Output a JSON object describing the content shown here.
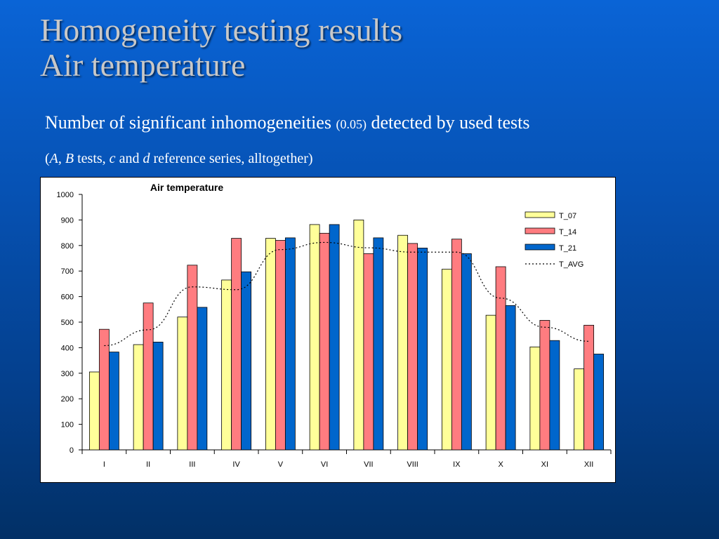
{
  "slide": {
    "title_line1": "Homogeneity testing results",
    "title_line2": "Air temperature",
    "subtitle_main": "Number of significant inhomogeneities ",
    "subtitle_sig": "(0.05)",
    "subtitle_end": " detected by used tests",
    "note": {
      "open": "(",
      "a": "A",
      "comma": ", ",
      "b": "B",
      "tests": " tests, ",
      "c": "c",
      "and": " and ",
      "d": "d",
      "rest": " reference series, alltogether)"
    }
  },
  "chart_data": {
    "type": "bar",
    "title": "Air temperature",
    "categories": [
      "I",
      "II",
      "III",
      "IV",
      "V",
      "VI",
      "VII",
      "VIII",
      "IX",
      "X",
      "XI",
      "XII"
    ],
    "ylim": [
      0,
      1000
    ],
    "yticks": [
      0,
      100,
      200,
      300,
      400,
      500,
      600,
      700,
      800,
      900,
      1000
    ],
    "grid": false,
    "legend_position": "top-right",
    "series": [
      {
        "name": "T_07",
        "type": "bar",
        "color": "#ffff99",
        "values": [
          305,
          412,
          520,
          665,
          828,
          882,
          900,
          840,
          707,
          527,
          403,
          317
        ]
      },
      {
        "name": "T_14",
        "type": "bar",
        "color": "#ff7c80",
        "values": [
          472,
          575,
          723,
          828,
          820,
          848,
          768,
          808,
          825,
          717,
          507,
          488
        ]
      },
      {
        "name": "T_21",
        "type": "bar",
        "color": "#0066cc",
        "values": [
          383,
          422,
          558,
          697,
          830,
          882,
          830,
          790,
          768,
          565,
          428,
          375
        ]
      },
      {
        "name": "T_AVG",
        "type": "line",
        "style": "dotted",
        "color": "#000000",
        "values": [
          408,
          470,
          638,
          627,
          784,
          812,
          791,
          774,
          774,
          594,
          480,
          425
        ]
      }
    ]
  }
}
